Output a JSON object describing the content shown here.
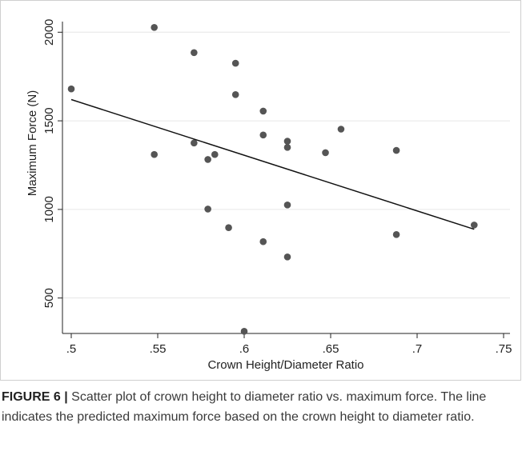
{
  "chart_data": {
    "type": "scatter",
    "xlabel": "Crown Height/Diameter Ratio",
    "ylabel": "Maximum Force (N)",
    "xlim": [
      0.5,
      0.75
    ],
    "ylim": [
      300,
      2060
    ],
    "x_ticks": [
      0.5,
      0.55,
      0.6,
      0.65,
      0.7,
      0.75
    ],
    "x_tick_labels": [
      ".5",
      ".55",
      ".6",
      ".65",
      ".7",
      ".75"
    ],
    "y_ticks": [
      500,
      1000,
      1500,
      2000
    ],
    "y_tick_labels": [
      "500",
      "1000",
      "1500",
      "2000"
    ],
    "grid": "horizontal",
    "colors": {
      "points": "#555555",
      "line": "#111111",
      "grid": "#e6e6e6"
    },
    "points": [
      {
        "x": 0.5,
        "y": 1680
      },
      {
        "x": 0.548,
        "y": 2027
      },
      {
        "x": 0.548,
        "y": 1310
      },
      {
        "x": 0.571,
        "y": 1885
      },
      {
        "x": 0.571,
        "y": 1375
      },
      {
        "x": 0.579,
        "y": 1282
      },
      {
        "x": 0.579,
        "y": 1002
      },
      {
        "x": 0.583,
        "y": 1310
      },
      {
        "x": 0.591,
        "y": 897
      },
      {
        "x": 0.595,
        "y": 1825
      },
      {
        "x": 0.595,
        "y": 1648
      },
      {
        "x": 0.6,
        "y": 312
      },
      {
        "x": 0.611,
        "y": 1555
      },
      {
        "x": 0.611,
        "y": 1420
      },
      {
        "x": 0.611,
        "y": 818
      },
      {
        "x": 0.625,
        "y": 1385
      },
      {
        "x": 0.625,
        "y": 1350
      },
      {
        "x": 0.625,
        "y": 1025
      },
      {
        "x": 0.625,
        "y": 732
      },
      {
        "x": 0.647,
        "y": 1320
      },
      {
        "x": 0.656,
        "y": 1453
      },
      {
        "x": 0.688,
        "y": 1333
      },
      {
        "x": 0.688,
        "y": 858
      },
      {
        "x": 0.733,
        "y": 912
      }
    ],
    "fit_line": {
      "x": [
        0.5,
        0.733
      ],
      "y": [
        1620,
        888
      ]
    }
  },
  "caption": {
    "label": "FIGURE 6 |",
    "text": " Scatter plot of crown height to diameter ratio vs. maximum force. The line indicates the predicted maximum force based on the crown height to diameter ratio."
  }
}
